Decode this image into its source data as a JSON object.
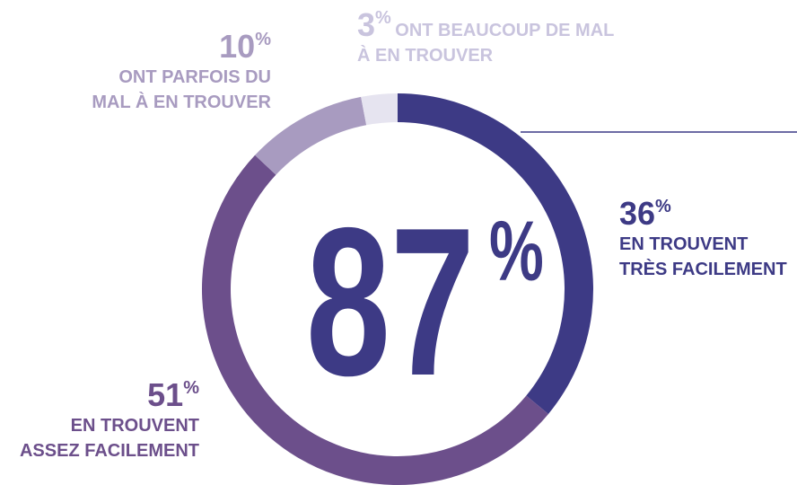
{
  "chart_data": {
    "type": "donut",
    "categories": [
      "EN TROUVENT\nTRÈS FACILEMENT",
      "EN TROUVENT\nASSEZ FACILEMENT",
      "ONT PARFOIS DU\nMAL À EN TROUVER",
      "ONT BEAUCOUP DE MAL\nÀ EN TROUVER"
    ],
    "values": [
      36,
      51,
      10,
      3
    ],
    "unit": "%",
    "colors": [
      "#3d3a85",
      "#6c4f8b",
      "#a89bc0",
      "#e6e4f0"
    ],
    "label_colors": [
      "#3d3a85",
      "#6c4f8b",
      "#a89bc0",
      "#c9c4de"
    ],
    "center_value": 87
  }
}
